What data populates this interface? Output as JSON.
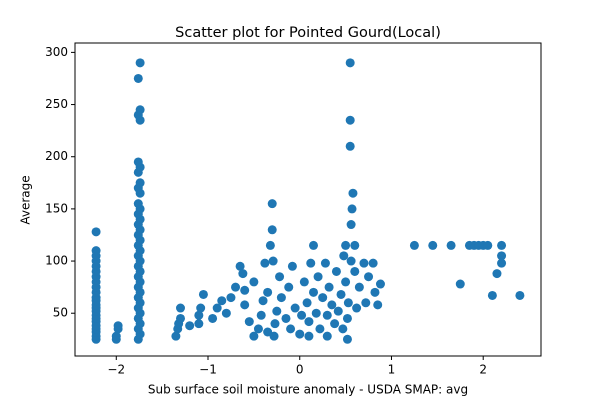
{
  "chart_data": {
    "type": "scatter",
    "title": "Scatter plot for Pointed Gourd(Local)",
    "x_label": "Sub surface soil moisture anomaly - USDA SMAP: avg",
    "y_label": "Average",
    "color": "#1f77b4",
    "grid": false,
    "xlim": [
      -2.45,
      2.63
    ],
    "ylim": [
      9,
      309
    ],
    "xticks": [
      {
        "value": -2,
        "label": "−2"
      },
      {
        "value": -1,
        "label": "−1"
      },
      0,
      1,
      2
    ],
    "yticks": [
      50,
      100,
      150,
      200,
      250,
      300
    ],
    "x": [
      -2.22,
      -2.22,
      -2.22,
      -2.22,
      -2.22,
      -2.22,
      -2.22,
      -2.22,
      -2.22,
      -2.22,
      -2.22,
      -2.22,
      -2.22,
      -2.22,
      -2.22,
      -2.22,
      -2.22,
      -2.22,
      -2.22,
      -2.22,
      -2.22,
      -2.22,
      -2.22,
      -2.0,
      -2.0,
      -1.98,
      -1.98,
      -1.76,
      -1.74,
      -1.76,
      -1.74,
      -1.76,
      -1.74,
      -1.76,
      -1.74,
      -1.76,
      -1.74,
      -1.76,
      -1.74,
      -1.76,
      -1.74,
      -1.76,
      -1.74,
      -1.76,
      -1.74,
      -1.76,
      -1.74,
      -1.76,
      -1.74,
      -1.76,
      -1.74,
      -1.76,
      -1.74,
      -1.76,
      -1.74,
      -1.76,
      -1.74,
      -1.76,
      -1.74,
      -1.76,
      -1.74,
      -1.76,
      -1.74,
      -1.76,
      -1.74,
      -1.35,
      -1.33,
      -1.32,
      -1.3,
      -1.3,
      -1.2,
      -1.1,
      -1.1,
      -1.08,
      -1.05,
      -0.95,
      -0.9,
      -0.85,
      -0.8,
      -0.75,
      -0.7,
      -0.65,
      -0.62,
      -0.6,
      -0.55,
      -0.5,
      -0.45,
      -0.42,
      -0.4,
      -0.38,
      -0.35,
      -0.32,
      -0.3,
      -0.3,
      -0.29,
      -0.28,
      -0.27,
      -0.25,
      -0.22,
      -0.2,
      -0.15,
      -0.12,
      -0.1,
      -0.08,
      -0.05,
      0,
      0.02,
      0.05,
      0.08,
      0.1,
      0.12,
      0.15,
      0.15,
      0.18,
      0.2,
      0.22,
      0.25,
      0.28,
      0.3,
      0.32,
      0.35,
      0.38,
      0.4,
      0.42,
      0.45,
      0.47,
      0.48,
      0.5,
      0.5,
      0.52,
      0.52,
      0.53,
      0.55,
      0.55,
      0.55,
      0.56,
      0.56,
      0.57,
      0.58,
      0.6,
      0.6,
      0.62,
      0.65,
      0.7,
      0.72,
      0.75,
      0.8,
      0.82,
      0.85,
      0.88,
      -0.35,
      -0.6,
      0.1,
      -0.5,
      0.3,
      1.25,
      1.45,
      1.65,
      1.85,
      1.9,
      1.95,
      2.0,
      2.05,
      2.2,
      2.2,
      2.2,
      2.15,
      1.75,
      2.1,
      2.4
    ],
    "y": [
      25,
      28,
      32,
      35,
      38,
      42,
      45,
      48,
      52,
      55,
      58,
      62,
      65,
      70,
      75,
      80,
      85,
      90,
      95,
      100,
      105,
      110,
      128,
      25,
      28,
      35,
      38,
      25,
      30,
      35,
      40,
      45,
      50,
      55,
      60,
      65,
      70,
      75,
      80,
      85,
      90,
      95,
      100,
      105,
      110,
      115,
      120,
      125,
      130,
      135,
      140,
      145,
      150,
      155,
      165,
      170,
      175,
      185,
      190,
      195,
      235,
      240,
      245,
      275,
      290,
      28,
      35,
      40,
      45,
      55,
      38,
      40,
      48,
      55,
      68,
      45,
      55,
      62,
      50,
      65,
      75,
      95,
      88,
      58,
      42,
      80,
      35,
      48,
      62,
      98,
      70,
      115,
      155,
      130,
      100,
      28,
      40,
      52,
      85,
      65,
      45,
      75,
      35,
      95,
      55,
      30,
      48,
      80,
      60,
      42,
      98,
      115,
      70,
      50,
      85,
      35,
      65,
      98,
      48,
      75,
      58,
      40,
      90,
      52,
      68,
      35,
      105,
      115,
      80,
      25,
      45,
      60,
      290,
      235,
      210,
      135,
      100,
      150,
      165,
      115,
      90,
      55,
      75,
      98,
      60,
      85,
      98,
      70,
      58,
      78,
      32,
      72,
      28,
      28,
      28,
      115,
      115,
      115,
      115,
      115,
      115,
      115,
      115,
      115,
      105,
      98,
      88,
      78,
      67,
      67
    ]
  }
}
